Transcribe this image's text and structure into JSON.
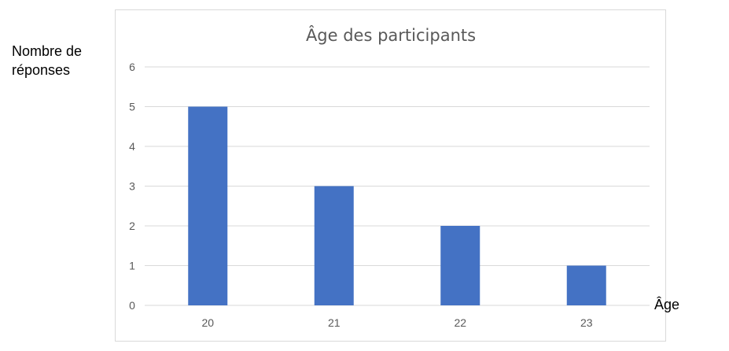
{
  "chart_data": {
    "type": "bar",
    "title": "Âge des participants",
    "xlabel": "Âge",
    "ylabel": "Nombre de réponses",
    "categories": [
      "20",
      "21",
      "22",
      "23"
    ],
    "values": [
      5,
      3,
      2,
      1
    ],
    "ylim": [
      0,
      6
    ],
    "yticks": [
      "0",
      "1",
      "2",
      "3",
      "4",
      "5",
      "6"
    ],
    "grid": true,
    "legend": "none",
    "bar_color": "#4472c4",
    "grid_color": "#d9d9d9"
  }
}
